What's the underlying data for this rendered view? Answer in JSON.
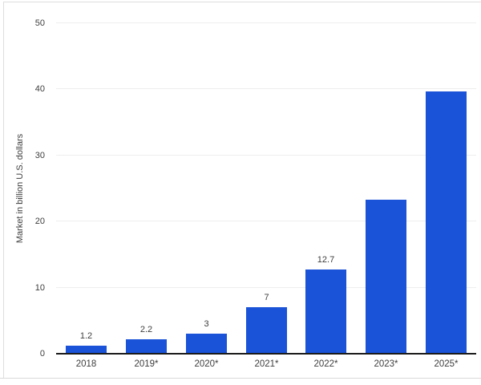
{
  "page": {
    "background": "#ffffff",
    "card_border_color": "#dedede"
  },
  "chart_data": {
    "type": "bar",
    "title": "",
    "categories": [
      "2018",
      "2019*",
      "2020*",
      "2021*",
      "2022*",
      "2023*",
      "2025*"
    ],
    "values": [
      1.2,
      2.2,
      3,
      7,
      12.7,
      23.3,
      39.7
    ],
    "bar_labels": [
      "1.2",
      "2.2",
      "3",
      "7",
      "12.7",
      "",
      ""
    ],
    "xlabel": "",
    "ylabel": "Market in billion U.S. dollars",
    "ylim": [
      0,
      50
    ],
    "yticks": [
      0,
      10,
      20,
      30,
      40,
      50
    ],
    "grid": true,
    "legend": false,
    "bar_color": "#1a53d7",
    "gridline_color": "#eeeeee",
    "axis_line_color": "#1a1a1a",
    "text_color": "#3d3d3d"
  }
}
